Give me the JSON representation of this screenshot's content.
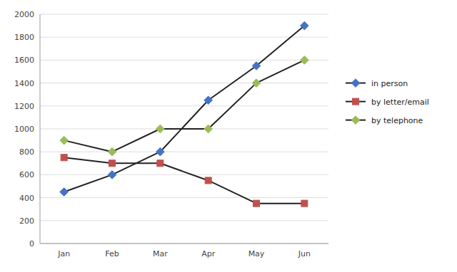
{
  "chart_data": {
    "type": "line",
    "categories": [
      "Jan",
      "Feb",
      "Mar",
      "Apr",
      "May",
      "Jun"
    ],
    "series": [
      {
        "name": "in person",
        "color": "#4472c4",
        "marker": "diamond",
        "values": [
          450,
          600,
          800,
          1250,
          1550,
          1900
        ]
      },
      {
        "name": "by letter/email",
        "color": "#c0504d",
        "marker": "square",
        "values": [
          750,
          700,
          700,
          550,
          350,
          350
        ]
      },
      {
        "name": "by telephone",
        "color": "#9bbb59",
        "marker": "diamond",
        "values": [
          900,
          800,
          1000,
          1000,
          1400,
          1600
        ]
      }
    ],
    "ylim": [
      0,
      2000
    ],
    "yticks": [
      0,
      200,
      400,
      600,
      800,
      1000,
      1200,
      1400,
      1600,
      1800,
      2000
    ],
    "grid": true,
    "legend": "right"
  }
}
